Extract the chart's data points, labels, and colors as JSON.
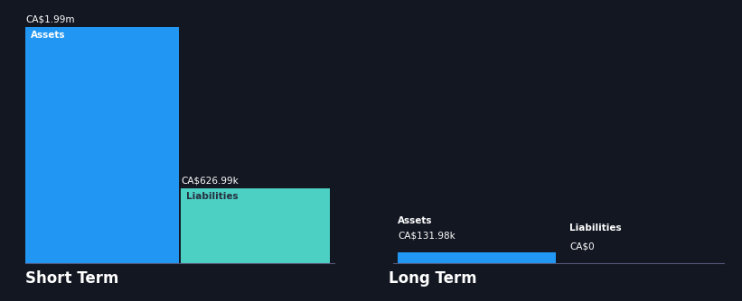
{
  "background_color": "#131722",
  "text_color": "#ffffff",
  "label_color_dark": "#263040",
  "short_term_assets_value": 1990000,
  "short_term_liabilities_value": 626990,
  "long_term_assets_value": 131980,
  "long_term_liabilities_value": 0,
  "short_term_assets_label": "CA$1.99m",
  "short_term_liabilities_label": "CA$626.99k",
  "long_term_assets_label": "CA$131.98k",
  "long_term_liabilities_label": "CA$0",
  "bar_label_assets": "Assets",
  "bar_label_liabilities": "Liabilities",
  "section_label_short": "Short Term",
  "section_label_long": "Long Term",
  "color_assets": "#2196F3",
  "color_liabilities": "#4DD0C4",
  "max_value": 1990000
}
